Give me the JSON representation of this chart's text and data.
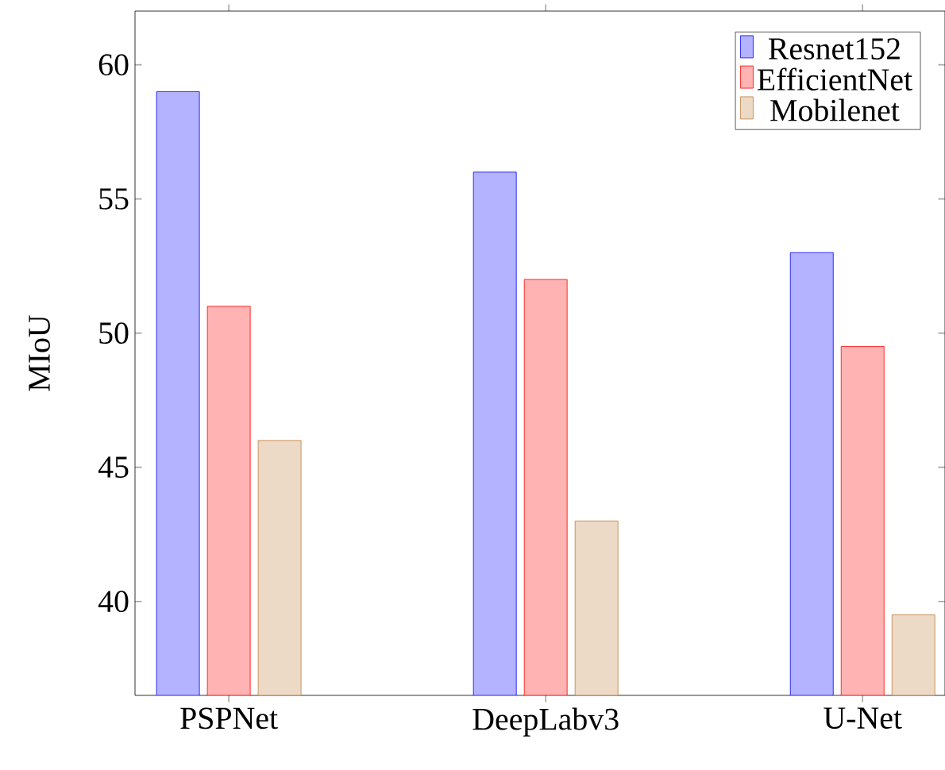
{
  "chart_data": {
    "type": "bar",
    "ylabel": "MIoU",
    "categories": [
      "PSPNet",
      "DeepLabv3",
      "U-Net"
    ],
    "series": [
      {
        "name": "Resnet152",
        "color": "#b3b3ff",
        "values": [
          59,
          56,
          53
        ]
      },
      {
        "name": "EfficientNet",
        "color": "#ffb3b3",
        "values": [
          51,
          52,
          49.5
        ]
      },
      {
        "name": "Mobilenet",
        "color": "#ecd9c6",
        "values": [
          46,
          43,
          39.5
        ]
      }
    ],
    "ylim": [
      36.5,
      62
    ],
    "yticks": [
      40,
      45,
      50,
      55,
      60
    ],
    "legend": "top right",
    "grid": false
  }
}
